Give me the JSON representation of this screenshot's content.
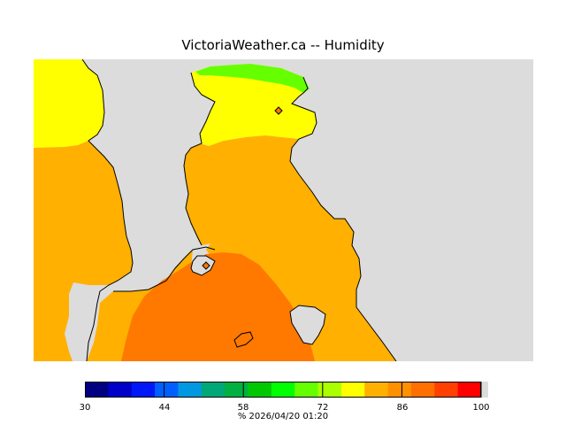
{
  "title": "VictoriaWeather.ca -- Humidity",
  "map": {
    "colors": {
      "land": "#dcdcdc",
      "yellow": "#ffff00",
      "light_green": "#66ff00",
      "orange_light": "#ffb000",
      "orange_dark": "#ff7800",
      "coast": "#000000"
    },
    "stations": [
      "station-diamond-north",
      "station-diamond-central"
    ]
  },
  "legend": {
    "colors": [
      "#000080",
      "#0000c8",
      "#0018f8",
      "#0060ff",
      "#0098e0",
      "#00a878",
      "#00b040",
      "#00c800",
      "#00ff00",
      "#66ff00",
      "#aaff00",
      "#ffff00",
      "#ffb000",
      "#ff9000",
      "#ff7000",
      "#ff4000",
      "#ff0000"
    ],
    "min": 30,
    "max": 100,
    "tick_labels": [
      "30",
      "44",
      "58",
      "72",
      "86",
      "100"
    ],
    "caption": "%  2026/04/20 01:20"
  }
}
